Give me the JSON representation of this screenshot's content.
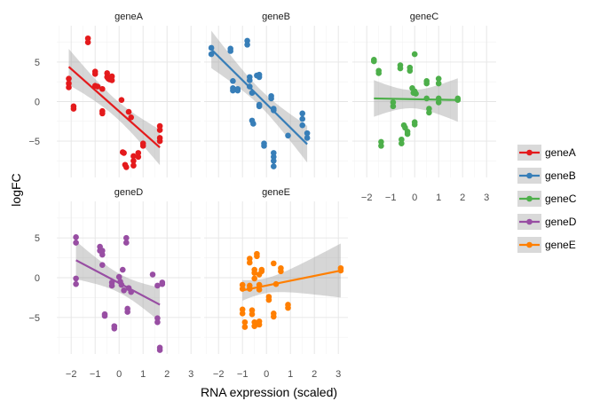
{
  "chart_data": {
    "type": "scatter",
    "facets": [
      "geneA",
      "geneB",
      "geneC",
      "geneD",
      "geneE"
    ],
    "xlabel": "RNA expression (scaled)",
    "ylabel": "logFC",
    "xlim": [
      -2.6,
      3.4
    ],
    "ylim": [
      -9.6,
      9.6
    ],
    "x_ticks": [
      -2,
      -1,
      0,
      1,
      2,
      3
    ],
    "y_ticks": [
      -5,
      0,
      5
    ],
    "grid": true,
    "legend_position": "right",
    "legend_entries": [
      "geneA",
      "geneB",
      "geneC",
      "geneD",
      "geneE"
    ],
    "series": [
      {
        "name": "geneA",
        "color": "#e41a1c",
        "trend": {
          "x": [
            -2.1,
            1.7
          ],
          "y": [
            4.4,
            -5.8
          ]
        },
        "points": [
          [
            -2.1,
            2.9
          ],
          [
            -2.1,
            2.3
          ],
          [
            -2.1,
            1.8
          ],
          [
            -1.9,
            -0.6
          ],
          [
            -1.9,
            -0.9
          ],
          [
            -1.3,
            8.0
          ],
          [
            -1.3,
            7.5
          ],
          [
            -1.0,
            3.8
          ],
          [
            -1.0,
            3.5
          ],
          [
            -1.0,
            2.0
          ],
          [
            -0.9,
            1.9
          ],
          [
            -0.7,
            1.6
          ],
          [
            -0.7,
            -1.2
          ],
          [
            -0.7,
            -1.5
          ],
          [
            -0.5,
            3.6
          ],
          [
            -0.5,
            3.1
          ],
          [
            -0.45,
            2.9
          ],
          [
            -0.4,
            2.8
          ],
          [
            -0.3,
            3.2
          ],
          [
            -0.3,
            2.7
          ],
          [
            0.1,
            0.2
          ],
          [
            0.15,
            -6.4
          ],
          [
            0.2,
            -6.5
          ],
          [
            0.25,
            -8.0
          ],
          [
            0.3,
            -8.3
          ],
          [
            0.4,
            -1.3
          ],
          [
            0.5,
            -2.0
          ],
          [
            0.6,
            -6.9
          ],
          [
            0.6,
            -7.5
          ],
          [
            0.6,
            -8.1
          ],
          [
            0.8,
            -6.5
          ],
          [
            0.8,
            -7.0
          ],
          [
            1.0,
            -5.3
          ],
          [
            1.0,
            -5.6
          ],
          [
            1.7,
            -3.1
          ],
          [
            1.7,
            -3.6
          ],
          [
            1.7,
            -4.6
          ],
          [
            1.7,
            -5.0
          ]
        ]
      },
      {
        "name": "geneB",
        "color": "#377eb8",
        "trend": {
          "x": [
            -2.3,
            1.7
          ],
          "y": [
            6.6,
            -5.4
          ]
        },
        "points": [
          [
            -2.3,
            6.8
          ],
          [
            -2.3,
            6.0
          ],
          [
            -1.5,
            6.7
          ],
          [
            -1.5,
            6.4
          ],
          [
            -1.4,
            2.6
          ],
          [
            -1.4,
            1.7
          ],
          [
            -1.4,
            1.4
          ],
          [
            -1.2,
            1.6
          ],
          [
            -1.2,
            1.4
          ],
          [
            -0.8,
            7.7
          ],
          [
            -0.8,
            7.2
          ],
          [
            -0.7,
            3.1
          ],
          [
            -0.7,
            2.7
          ],
          [
            -0.7,
            1.9
          ],
          [
            -0.6,
            1.1
          ],
          [
            -0.6,
            -2.4
          ],
          [
            -0.55,
            -2.8
          ],
          [
            -0.4,
            3.3
          ],
          [
            -0.3,
            3.4
          ],
          [
            -0.3,
            3.1
          ],
          [
            -0.3,
            -0.4
          ],
          [
            -0.3,
            -0.6
          ],
          [
            -0.1,
            -5.3
          ],
          [
            -0.1,
            -5.6
          ],
          [
            0.2,
            0.7
          ],
          [
            0.2,
            0.4
          ],
          [
            0.3,
            -0.9
          ],
          [
            0.3,
            -1.1
          ],
          [
            0.3,
            -6.5
          ],
          [
            0.3,
            -7.0
          ],
          [
            0.3,
            -7.5
          ],
          [
            0.3,
            -8.2
          ],
          [
            0.9,
            -4.3
          ],
          [
            1.5,
            -1.5
          ],
          [
            1.5,
            -2.2
          ],
          [
            1.5,
            -3.0
          ],
          [
            1.7,
            -4.0
          ],
          [
            1.7,
            -4.6
          ]
        ]
      },
      {
        "name": "geneC",
        "color": "#4daf4a",
        "trend": {
          "x": [
            -1.7,
            1.8
          ],
          "y": [
            0.4,
            0.2
          ]
        },
        "points": [
          [
            -1.7,
            5.3
          ],
          [
            -1.7,
            5.1
          ],
          [
            -1.5,
            3.9
          ],
          [
            -1.5,
            3.6
          ],
          [
            -1.4,
            -5.1
          ],
          [
            -1.4,
            -5.6
          ],
          [
            -0.9,
            -0.1
          ],
          [
            -0.9,
            -0.6
          ],
          [
            -0.6,
            4.6
          ],
          [
            -0.6,
            4.2
          ],
          [
            -0.55,
            -4.8
          ],
          [
            -0.55,
            -5.3
          ],
          [
            -0.45,
            -3.0
          ],
          [
            -0.4,
            -3.3
          ],
          [
            -0.3,
            -3.8
          ],
          [
            -0.3,
            -4.1
          ],
          [
            -0.2,
            4.3
          ],
          [
            -0.2,
            3.9
          ],
          [
            -0.1,
            1.7
          ],
          [
            -0.05,
            1.1
          ],
          [
            0.0,
            6.0
          ],
          [
            0.0,
            1.3
          ],
          [
            0.0,
            -2.6
          ],
          [
            0.05,
            1.0
          ],
          [
            0.0,
            -2.9
          ],
          [
            0.5,
            2.6
          ],
          [
            0.5,
            2.3
          ],
          [
            0.5,
            0.4
          ],
          [
            0.6,
            -0.9
          ],
          [
            0.6,
            -1.4
          ],
          [
            1.0,
            2.9
          ],
          [
            1.0,
            2.3
          ],
          [
            1.0,
            0.4
          ],
          [
            1.0,
            -0.1
          ],
          [
            1.8,
            0.4
          ],
          [
            1.8,
            0.2
          ]
        ]
      },
      {
        "name": "geneD",
        "color": "#984ea3",
        "trend": {
          "x": [
            -1.8,
            1.7
          ],
          "y": [
            2.2,
            -3.4
          ]
        },
        "points": [
          [
            -1.8,
            5.1
          ],
          [
            -1.8,
            4.4
          ],
          [
            -1.8,
            -0.1
          ],
          [
            -1.8,
            -0.8
          ],
          [
            -0.8,
            3.9
          ],
          [
            -0.8,
            3.4
          ],
          [
            -0.7,
            3.4
          ],
          [
            -0.7,
            2.9
          ],
          [
            -0.7,
            1.6
          ],
          [
            -0.6,
            -4.6
          ],
          [
            -0.6,
            -4.8
          ],
          [
            -0.3,
            -0.6
          ],
          [
            -0.3,
            -1.0
          ],
          [
            -0.2,
            -6.1
          ],
          [
            -0.2,
            -6.4
          ],
          [
            0.0,
            0.1
          ],
          [
            0.05,
            -0.5
          ],
          [
            0.1,
            -0.9
          ],
          [
            0.15,
            1.0
          ],
          [
            0.2,
            -1.6
          ],
          [
            0.3,
            5.0
          ],
          [
            0.3,
            4.4
          ],
          [
            0.35,
            -3.9
          ],
          [
            0.35,
            -4.3
          ],
          [
            0.4,
            -1.3
          ],
          [
            0.5,
            -1.8
          ],
          [
            1.4,
            0.4
          ],
          [
            1.6,
            -1.0
          ],
          [
            1.6,
            -5.1
          ],
          [
            1.6,
            -5.6
          ],
          [
            1.7,
            -8.8
          ],
          [
            1.7,
            -9.1
          ],
          [
            1.8,
            -0.6
          ],
          [
            1.8,
            -0.8
          ]
        ]
      },
      {
        "name": "geneE",
        "color": "#ff7f00",
        "trend": {
          "x": [
            -1.0,
            3.1
          ],
          "y": [
            -1.6,
            0.9
          ]
        },
        "points": [
          [
            -1.0,
            -0.9
          ],
          [
            -1.0,
            -1.4
          ],
          [
            -1.0,
            -4.0
          ],
          [
            -1.0,
            -4.5
          ],
          [
            -0.9,
            -5.6
          ],
          [
            -0.9,
            -6.2
          ],
          [
            -0.7,
            2.4
          ],
          [
            -0.7,
            1.9
          ],
          [
            -0.7,
            -1.0
          ],
          [
            -0.7,
            -1.4
          ],
          [
            -0.6,
            -4.1
          ],
          [
            -0.6,
            -4.6
          ],
          [
            -0.5,
            1.0
          ],
          [
            -0.5,
            0.6
          ],
          [
            -0.5,
            -0.1
          ],
          [
            -0.5,
            -5.6
          ],
          [
            -0.5,
            -6.1
          ],
          [
            -0.4,
            3.0
          ],
          [
            -0.4,
            2.7
          ],
          [
            -0.3,
            0.4
          ],
          [
            -0.3,
            -0.9
          ],
          [
            -0.3,
            -1.5
          ],
          [
            -0.3,
            -5.5
          ],
          [
            -0.3,
            -5.9
          ],
          [
            -0.2,
            1.0
          ],
          [
            -0.2,
            0.8
          ],
          [
            0.1,
            -2.4
          ],
          [
            0.1,
            -2.8
          ],
          [
            0.3,
            1.8
          ],
          [
            0.3,
            -4.5
          ],
          [
            0.3,
            -4.9
          ],
          [
            0.4,
            -0.8
          ],
          [
            0.6,
            1.2
          ],
          [
            0.6,
            0.8
          ],
          [
            0.9,
            -3.4
          ],
          [
            0.9,
            -3.8
          ],
          [
            3.1,
            1.2
          ],
          [
            3.1,
            0.9
          ]
        ]
      }
    ]
  }
}
